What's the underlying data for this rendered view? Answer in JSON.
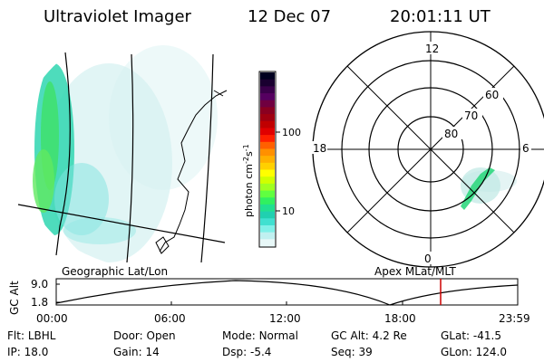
{
  "header": {
    "instrument": "Ultraviolet Imager",
    "date": "12 Dec 07",
    "time": "20:01:11 UT"
  },
  "colorbar": {
    "label": "photon cm",
    "label_exp1": "-2",
    "label_mid": "s",
    "label_exp2": "-1",
    "ticks": [
      "100",
      "10"
    ],
    "colors": [
      "#000020",
      "#1a0030",
      "#3a004a",
      "#550060",
      "#700040",
      "#8a0020",
      "#a00010",
      "#c00000",
      "#e00000",
      "#ff2000",
      "#ff6000",
      "#ff9000",
      "#ffb000",
      "#ffd000",
      "#ffff00",
      "#d0ff00",
      "#a0ff20",
      "#60ff40",
      "#30f060",
      "#20e090",
      "#20d0b0",
      "#40e0d0",
      "#80f0e8",
      "#c0f0f0",
      "#e8f8f8"
    ]
  },
  "polar_plot": {
    "clock_labels": {
      "top": "12",
      "left": "18",
      "right": "6",
      "bottom": "0"
    },
    "lat_labels": [
      "60",
      "70",
      "80"
    ]
  },
  "map_labels": {
    "left": "Geographic Lat/Lon",
    "right": "Apex MLat/MLT"
  },
  "timeline": {
    "ylabel": "GC Alt",
    "yticks": [
      "9.0",
      "1.8"
    ],
    "xticks": [
      "00:00",
      "06:00",
      "12:00",
      "18:00",
      "23:59"
    ],
    "current_marker_color": "#cc0000"
  },
  "footer": {
    "row1": [
      {
        "label": "Flt:",
        "value": "LBHL"
      },
      {
        "label": "Door:",
        "value": "Open"
      },
      {
        "label": "Mode:",
        "value": "Normal"
      },
      {
        "label": "GC Alt:",
        "value": "4.2 Re"
      },
      {
        "label": "GLat:",
        "value": "-41.5"
      }
    ],
    "row2": [
      {
        "label": "IP:",
        "value": "18.0"
      },
      {
        "label": "Gain:",
        "value": "14"
      },
      {
        "label": "Dsp:",
        "value": "-5.4"
      },
      {
        "label": "Seq:",
        "value": "39"
      },
      {
        "label": "GLon:",
        "value": "124.0"
      }
    ]
  }
}
